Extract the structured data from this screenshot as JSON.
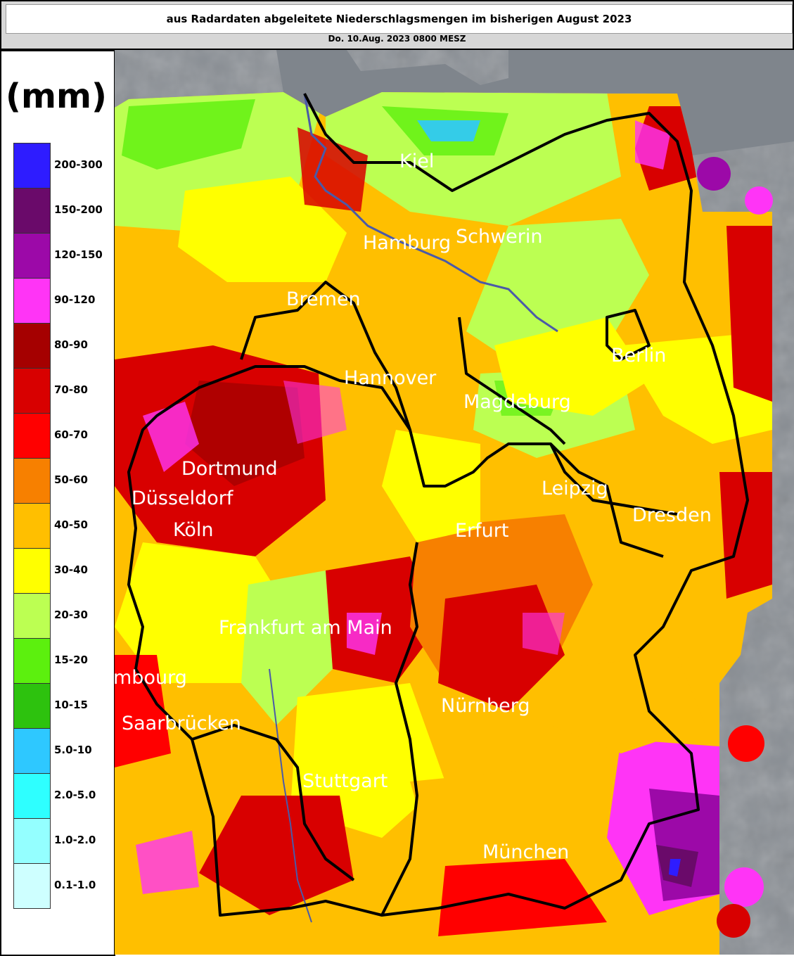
{
  "header": {
    "title": "aus Radardaten abgeleitete Niederschlagsmengen im bisherigen August 2023",
    "subtitle": "Do. 10.Aug. 2023 0800 MESZ"
  },
  "legend": {
    "unit": "(mm)",
    "classes": [
      {
        "label": "200-300",
        "color": "#2e1cff"
      },
      {
        "label": "150-200",
        "color": "#6a0a6a"
      },
      {
        "label": "120-150",
        "color": "#9c09a8"
      },
      {
        "label": "90-120",
        "color": "#ff34f6"
      },
      {
        "label": "80-90",
        "color": "#a50000"
      },
      {
        "label": "70-80",
        "color": "#d80000"
      },
      {
        "label": "60-70",
        "color": "#ff0000"
      },
      {
        "label": "50-60",
        "color": "#f78000"
      },
      {
        "label": "40-50",
        "color": "#ffbf00"
      },
      {
        "label": "30-40",
        "color": "#ffff00"
      },
      {
        "label": "20-30",
        "color": "#bcff52"
      },
      {
        "label": "15-20",
        "color": "#5cf00e"
      },
      {
        "label": "10-15",
        "color": "#2dc20e"
      },
      {
        "label": "5.0-10",
        "color": "#2ec8ff"
      },
      {
        "label": "2.0-5.0",
        "color": "#2effff"
      },
      {
        "label": "1.0-2.0",
        "color": "#94ffff"
      },
      {
        "label": "0.1-1.0",
        "color": "#ceffff"
      }
    ]
  },
  "cities": [
    {
      "name": "Kiel"
    },
    {
      "name": "Hamburg"
    },
    {
      "name": "Schwerin"
    },
    {
      "name": "Bremen"
    },
    {
      "name": "Berlin"
    },
    {
      "name": "Hannover"
    },
    {
      "name": "Magdeburg"
    },
    {
      "name": "Dortmund"
    },
    {
      "name": "Düsseldorf"
    },
    {
      "name": "Leipzig"
    },
    {
      "name": "Dresden"
    },
    {
      "name": "Köln"
    },
    {
      "name": "Erfurt"
    },
    {
      "name": "Frankfurt am Main"
    },
    {
      "name": "mbourg"
    },
    {
      "name": "Nürnberg"
    },
    {
      "name": "Saarbrücken"
    },
    {
      "name": "Stuttgart"
    },
    {
      "name": "München"
    }
  ]
}
